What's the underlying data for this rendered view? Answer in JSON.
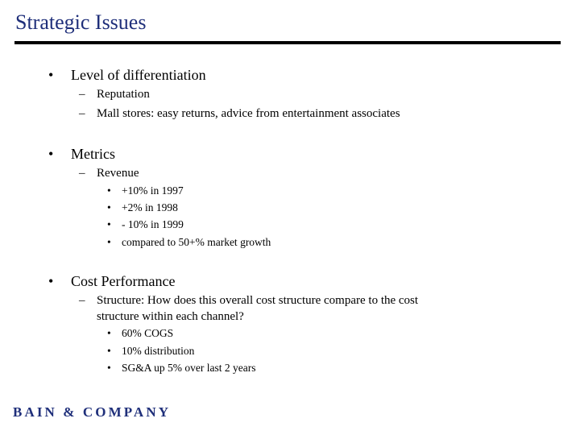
{
  "title": "Strategic Issues",
  "bullet_l1": "•",
  "bullet_l2": "–",
  "bullet_l3": "•",
  "sections": [
    {
      "heading": "Level of differentiation",
      "items": [
        {
          "text": "Reputation"
        },
        {
          "text": "Mall stores: easy returns, advice from entertainment associates"
        }
      ]
    },
    {
      "heading": "Metrics",
      "items": [
        {
          "text": "Revenue",
          "subitems": [
            "+10% in 1997",
            "+2% in 1998",
            "- 10% in 1999",
            "compared to 50+% market growth"
          ]
        }
      ]
    },
    {
      "heading": "Cost Performance",
      "items": [
        {
          "text_line1": "Structure: How does this overall cost structure compare to the cost",
          "text_line2": "structure within each channel?",
          "subitems": [
            "60% COGS",
            "10% distribution",
            "SG&A up 5% over last 2 years"
          ]
        }
      ]
    }
  ],
  "logo": {
    "text": "BAIN & COMPANY",
    "color": "#1f2f7a"
  },
  "colors": {
    "title": "#1f2f7a",
    "rule": "#000000"
  }
}
